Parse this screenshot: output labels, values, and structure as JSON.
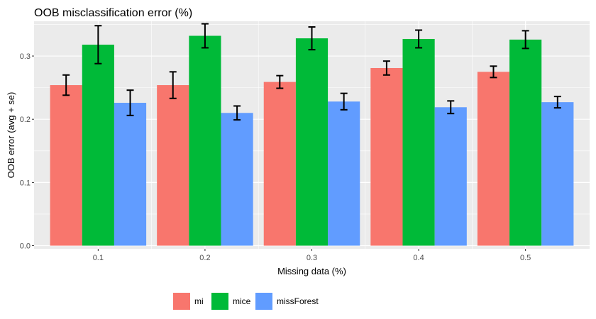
{
  "chart_data": {
    "type": "bar",
    "title": "OOB misclassification error (%)",
    "xlabel": "Missing data (%)",
    "ylabel": "OOB error (avg + se)",
    "categories": [
      "0.1",
      "0.2",
      "0.3",
      "0.4",
      "0.5"
    ],
    "ylim": [
      -0.005,
      0.355
    ],
    "yticks": [
      0.0,
      0.1,
      0.2,
      0.3
    ],
    "ytick_labels": [
      "0.0",
      "0.1",
      "0.2",
      "0.3"
    ],
    "grid": true,
    "legend_position": "bottom",
    "series": [
      {
        "name": "mi",
        "color": "#F8766D",
        "values": [
          0.254,
          0.254,
          0.259,
          0.281,
          0.275
        ],
        "err": [
          0.016,
          0.021,
          0.01,
          0.011,
          0.009
        ]
      },
      {
        "name": "mice",
        "color": "#00BA38",
        "values": [
          0.318,
          0.332,
          0.328,
          0.327,
          0.326
        ],
        "err": [
          0.03,
          0.019,
          0.018,
          0.014,
          0.014
        ]
      },
      {
        "name": "missForest",
        "color": "#619CFF",
        "values": [
          0.226,
          0.21,
          0.228,
          0.219,
          0.227
        ],
        "err": [
          0.02,
          0.011,
          0.013,
          0.01,
          0.009
        ]
      }
    ]
  }
}
